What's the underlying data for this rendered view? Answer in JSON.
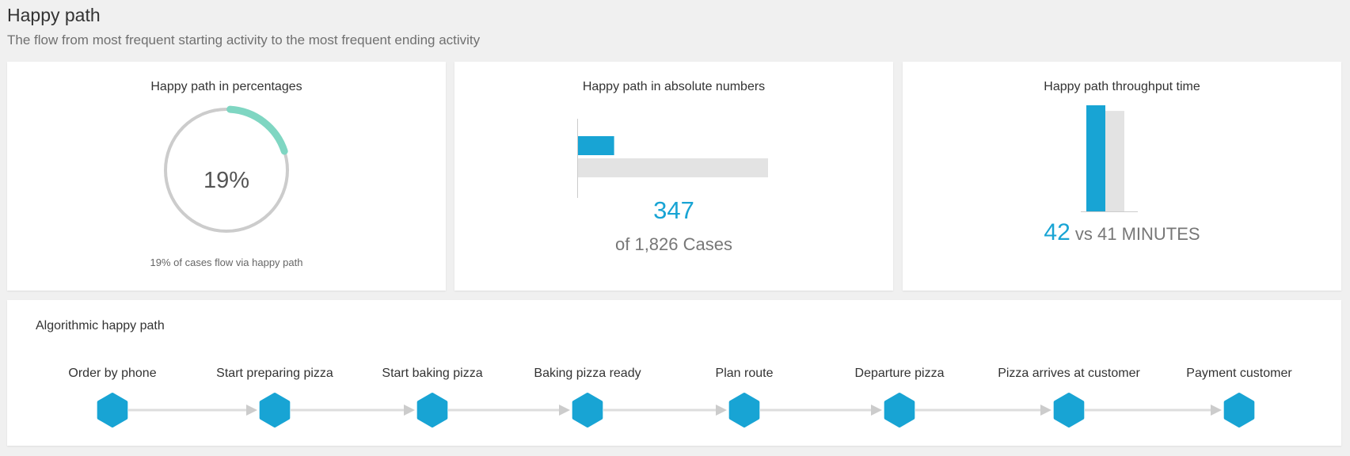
{
  "header": {
    "title": "Happy path",
    "subtitle": "The flow from most frequent starting activity to the most frequent ending activity"
  },
  "percent_card": {
    "title": "Happy path in percentages",
    "value": "19%",
    "fraction": 0.19,
    "caption": "19% of cases flow via happy path"
  },
  "absolute_card": {
    "title": "Happy path in absolute numbers",
    "value": "347",
    "caption": "of 1,826 Cases",
    "happy": 347,
    "total": 1826
  },
  "throughput_card": {
    "title": "Happy path throughput time",
    "value": "42",
    "rest": "vs 41 MINUTES",
    "happy_minutes": 42,
    "avg_minutes": 41
  },
  "algorithmic": {
    "title": "Algorithmic happy path",
    "steps": [
      "Order by phone",
      "Start preparing pizza",
      "Start baking pizza",
      "Baking pizza ready",
      "Plan route",
      "Departure pizza",
      "Pizza arrives at customer",
      "Payment customer"
    ]
  },
  "colors": {
    "accent": "#18a4d4",
    "gauge_arc": "#7fd6c2",
    "gauge_track": "#cccccc",
    "bar_gray": "#e3e3e3",
    "connector": "#dddddd"
  }
}
